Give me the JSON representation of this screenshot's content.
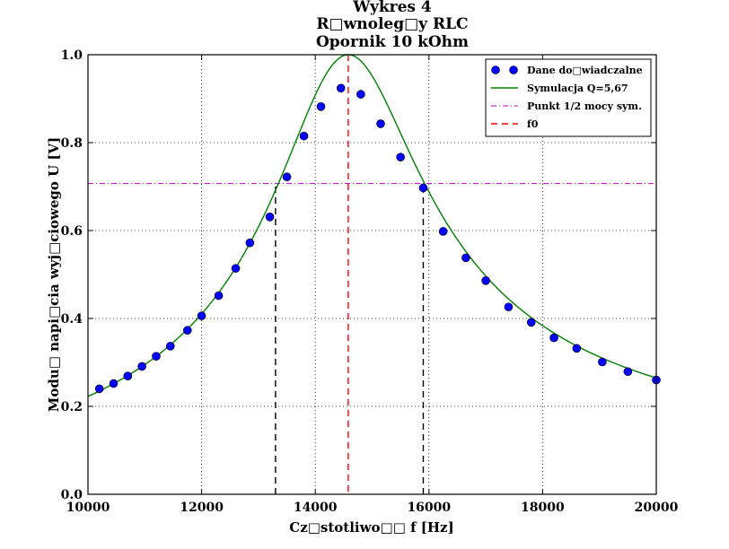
{
  "chart_data": {
    "type": "scatter",
    "title": [
      "Wykres 4",
      "R□wnoleg□y RLC",
      "Opornik 10 kOhm"
    ],
    "xlabel": "Cz□stotliwo□□ f [Hz]",
    "ylabel": "Modu□ napi□cia wyj□ciowego U [V]",
    "xlim": [
      10000,
      20000
    ],
    "ylim": [
      0,
      1.0
    ],
    "xticks": [
      10000,
      12000,
      14000,
      16000,
      18000,
      20000
    ],
    "yticks": [
      0.0,
      0.2,
      0.4,
      0.6,
      0.8,
      1.0
    ],
    "xtick_labels": [
      "10000",
      "12000",
      "14000",
      "16000",
      "18000",
      "20000"
    ],
    "ytick_labels": [
      "0.0",
      "0.2",
      "0.4",
      "0.6",
      "0.8",
      "1.0"
    ],
    "grid": true,
    "legend_position": "top-right",
    "series": [
      {
        "name": "Dane do□wiadczalne",
        "kind": "markers",
        "color": "#0000ff",
        "x": [
          10200,
          10450,
          10700,
          10950,
          11200,
          11450,
          11750,
          12000,
          12300,
          12600,
          12850,
          13200,
          13500,
          13800,
          14100,
          14450,
          14800,
          15150,
          15500,
          15900,
          16250,
          16650,
          17000,
          17400,
          17800,
          18200,
          18600,
          19050,
          19500,
          20000
        ],
        "y": [
          0.24,
          0.252,
          0.269,
          0.291,
          0.314,
          0.337,
          0.373,
          0.406,
          0.452,
          0.514,
          0.572,
          0.631,
          0.722,
          0.815,
          0.882,
          0.924,
          0.91,
          0.843,
          0.767,
          0.697,
          0.598,
          0.538,
          0.486,
          0.426,
          0.391,
          0.356,
          0.332,
          0.301,
          0.279,
          0.26
        ]
      },
      {
        "name": "Symulacja Q=5,67",
        "kind": "curve",
        "color": "#008000",
        "f0": 14580,
        "Q": 5.67,
        "peak": 1.0
      },
      {
        "name": "Punkt 1/2 mocy sym.",
        "kind": "hline",
        "color": "#bf00bf",
        "y": 0.707,
        "cutoffs_x": [
          13300,
          15900
        ]
      },
      {
        "name": "f0",
        "kind": "vline",
        "color": "#ff0000",
        "x": 14580
      }
    ]
  }
}
